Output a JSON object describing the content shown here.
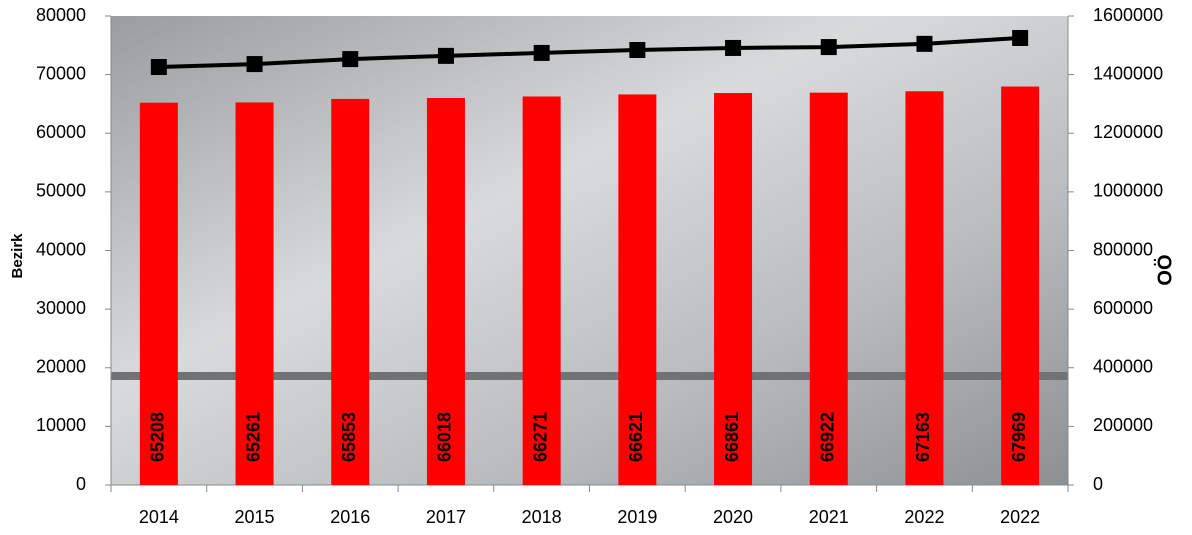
{
  "chart_data": {
    "type": "bar-line",
    "categories": [
      "2014",
      "2015",
      "2016",
      "2017",
      "2018",
      "2019",
      "2020",
      "2021",
      "2022",
      "2022"
    ],
    "ylabel": "Bezirk",
    "y2label": "OÖ",
    "ylim": [
      0,
      80000
    ],
    "yticks": [
      0,
      10000,
      20000,
      30000,
      40000,
      50000,
      60000,
      70000,
      80000
    ],
    "y2lim": [
      0,
      1600000
    ],
    "y2ticks": [
      0,
      200000,
      400000,
      600000,
      800000,
      1000000,
      1200000,
      1400000,
      1600000
    ],
    "series": [
      {
        "type": "bar",
        "color": "#ff0000",
        "values": [
          65208,
          65261,
          65853,
          66018,
          66271,
          66621,
          66861,
          66922,
          67163,
          67969
        ]
      },
      {
        "type": "line",
        "axis": "y2",
        "color": "#000000",
        "values": [
          1426000,
          1436000,
          1453000,
          1464000,
          1474000,
          1484000,
          1491000,
          1494000,
          1505000,
          1525000
        ]
      }
    ]
  }
}
